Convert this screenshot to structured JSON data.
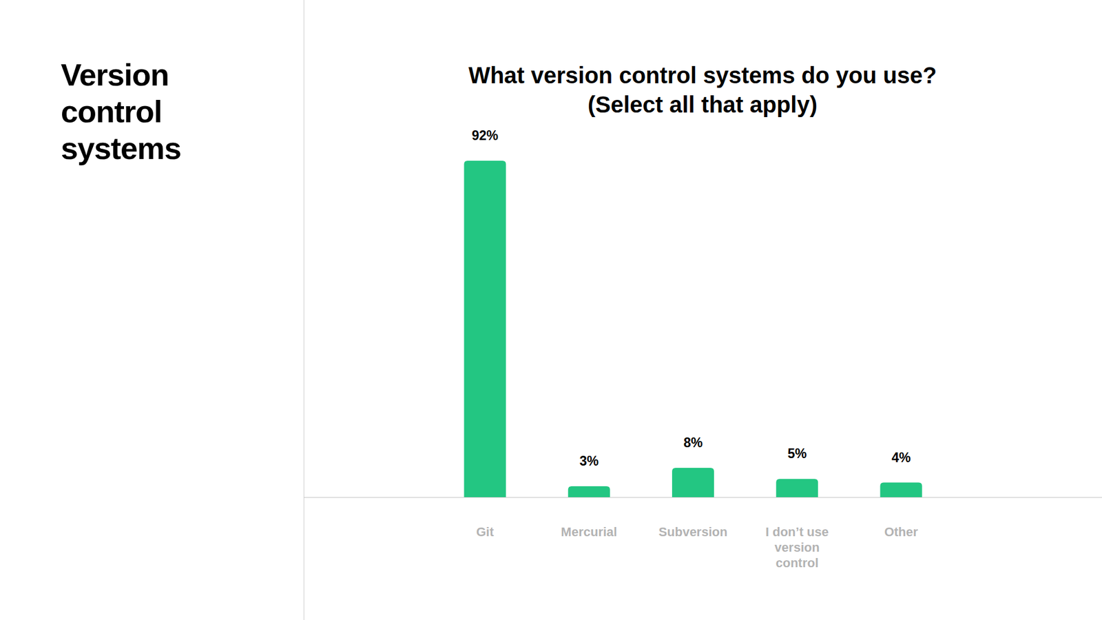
{
  "page": {
    "title": "Version control systems"
  },
  "chart_data": {
    "type": "bar",
    "title": "What version control systems do you use?",
    "subtitle": "(Select all that apply)",
    "categories": [
      "Git",
      "Mercurial",
      "Subversion",
      "I don’t use version control",
      "Other"
    ],
    "values": [
      92,
      3,
      8,
      5,
      4
    ],
    "value_labels": [
      "92%",
      "3%",
      "8%",
      "5%",
      "4%"
    ],
    "color": "#23c682",
    "ylim": [
      0,
      100
    ],
    "data_labels": true,
    "tick_labels": "x",
    "grid": false
  }
}
